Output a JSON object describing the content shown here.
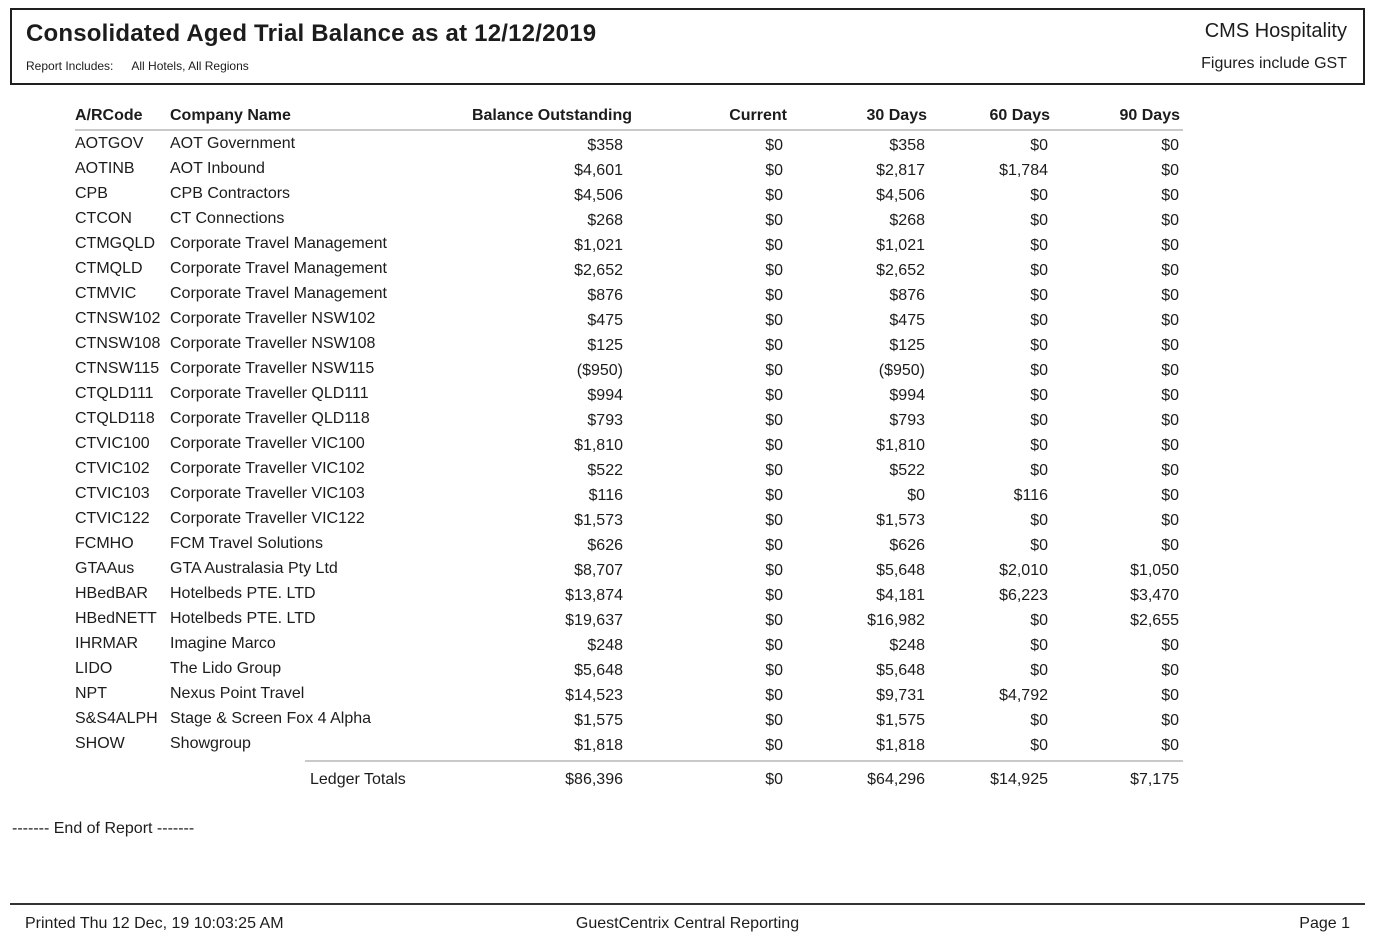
{
  "header": {
    "title": "Consolidated Aged Trial Balance as at 12/12/2019",
    "report_includes_label": "Report Includes:",
    "report_includes_value": "All Hotels, All Regions",
    "brand": "CMS Hospitality",
    "gst_note": "Figures include GST"
  },
  "table": {
    "columns": [
      "A/RCode",
      "Company Name",
      "Balance Outstanding",
      "Current",
      "30 Days",
      "60 Days",
      "90 Days"
    ],
    "rows": [
      {
        "code": "AOTGOV",
        "company": "AOT Government",
        "balance": "$358",
        "current": "$0",
        "d30": "$358",
        "d60": "$0",
        "d90": "$0"
      },
      {
        "code": "AOTINB",
        "company": "AOT Inbound",
        "balance": "$4,601",
        "current": "$0",
        "d30": "$2,817",
        "d60": "$1,784",
        "d90": "$0"
      },
      {
        "code": "CPB",
        "company": "CPB Contractors",
        "balance": "$4,506",
        "current": "$0",
        "d30": "$4,506",
        "d60": "$0",
        "d90": "$0"
      },
      {
        "code": "CTCON",
        "company": "CT Connections",
        "balance": "$268",
        "current": "$0",
        "d30": "$268",
        "d60": "$0",
        "d90": "$0"
      },
      {
        "code": "CTMGQLD",
        "company": "Corporate Travel Management",
        "balance": "$1,021",
        "current": "$0",
        "d30": "$1,021",
        "d60": "$0",
        "d90": "$0"
      },
      {
        "code": "CTMQLD",
        "company": "Corporate Travel Management",
        "balance": "$2,652",
        "current": "$0",
        "d30": "$2,652",
        "d60": "$0",
        "d90": "$0"
      },
      {
        "code": "CTMVIC",
        "company": "Corporate Travel Management",
        "balance": "$876",
        "current": "$0",
        "d30": "$876",
        "d60": "$0",
        "d90": "$0"
      },
      {
        "code": "CTNSW102",
        "company": "Corporate Traveller NSW102",
        "balance": "$475",
        "current": "$0",
        "d30": "$475",
        "d60": "$0",
        "d90": "$0"
      },
      {
        "code": "CTNSW108",
        "company": "Corporate Traveller NSW108",
        "balance": "$125",
        "current": "$0",
        "d30": "$125",
        "d60": "$0",
        "d90": "$0"
      },
      {
        "code": "CTNSW115",
        "company": "Corporate Traveller NSW115",
        "balance": "($950)",
        "current": "$0",
        "d30": "($950)",
        "d60": "$0",
        "d90": "$0"
      },
      {
        "code": "CTQLD111",
        "company": "Corporate Traveller QLD111",
        "balance": "$994",
        "current": "$0",
        "d30": "$994",
        "d60": "$0",
        "d90": "$0"
      },
      {
        "code": "CTQLD118",
        "company": "Corporate Traveller QLD118",
        "balance": "$793",
        "current": "$0",
        "d30": "$793",
        "d60": "$0",
        "d90": "$0"
      },
      {
        "code": "CTVIC100",
        "company": "Corporate Traveller VIC100",
        "balance": "$1,810",
        "current": "$0",
        "d30": "$1,810",
        "d60": "$0",
        "d90": "$0"
      },
      {
        "code": "CTVIC102",
        "company": "Corporate Traveller VIC102",
        "balance": "$522",
        "current": "$0",
        "d30": "$522",
        "d60": "$0",
        "d90": "$0"
      },
      {
        "code": "CTVIC103",
        "company": "Corporate Traveller VIC103",
        "balance": "$116",
        "current": "$0",
        "d30": "$0",
        "d60": "$116",
        "d90": "$0"
      },
      {
        "code": "CTVIC122",
        "company": "Corporate Traveller VIC122",
        "balance": "$1,573",
        "current": "$0",
        "d30": "$1,573",
        "d60": "$0",
        "d90": "$0"
      },
      {
        "code": "FCMHO",
        "company": "FCM Travel Solutions",
        "balance": "$626",
        "current": "$0",
        "d30": "$626",
        "d60": "$0",
        "d90": "$0"
      },
      {
        "code": "GTAAus",
        "company": "GTA Australasia Pty Ltd",
        "balance": "$8,707",
        "current": "$0",
        "d30": "$5,648",
        "d60": "$2,010",
        "d90": "$1,050"
      },
      {
        "code": "HBedBAR",
        "company": "Hotelbeds PTE. LTD",
        "balance": "$13,874",
        "current": "$0",
        "d30": "$4,181",
        "d60": "$6,223",
        "d90": "$3,470"
      },
      {
        "code": "HBedNETT",
        "company": "Hotelbeds PTE. LTD",
        "balance": "$19,637",
        "current": "$0",
        "d30": "$16,982",
        "d60": "$0",
        "d90": "$2,655"
      },
      {
        "code": "IHRMAR",
        "company": "Imagine Marco",
        "balance": "$248",
        "current": "$0",
        "d30": "$248",
        "d60": "$0",
        "d90": "$0"
      },
      {
        "code": "LIDO",
        "company": "The Lido Group",
        "balance": "$5,648",
        "current": "$0",
        "d30": "$5,648",
        "d60": "$0",
        "d90": "$0"
      },
      {
        "code": "NPT",
        "company": "Nexus Point Travel",
        "balance": "$14,523",
        "current": "$0",
        "d30": "$9,731",
        "d60": "$4,792",
        "d90": "$0"
      },
      {
        "code": "S&S4ALPH",
        "company": "Stage & Screen Fox 4 Alpha",
        "balance": "$1,575",
        "current": "$0",
        "d30": "$1,575",
        "d60": "$0",
        "d90": "$0"
      },
      {
        "code": "SHOW",
        "company": "Showgroup",
        "balance": "$1,818",
        "current": "$0",
        "d30": "$1,818",
        "d60": "$0",
        "d90": "$0"
      }
    ],
    "totals": {
      "label": "Ledger Totals",
      "balance": "$86,396",
      "current": "$0",
      "d30": "$64,296",
      "d60": "$14,925",
      "d90": "$7,175"
    }
  },
  "end_of_report": "------- End of Report -------",
  "footer": {
    "printed": "Printed Thu 12 Dec, 19 10:03:25 AM",
    "center": "GuestCentrix Central Reporting",
    "page": "Page 1"
  }
}
